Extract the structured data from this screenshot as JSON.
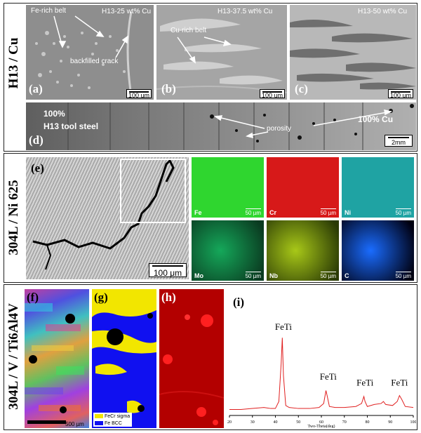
{
  "rows": {
    "r1": {
      "label": "H13 / Cu"
    },
    "r2": {
      "label": "304L / Ni 625"
    },
    "r3": {
      "label": "304L / V / Ti6Al4V"
    }
  },
  "panel_a": {
    "label": "(a)",
    "title": "H13-25 wt% Cu",
    "ann1": "Fe-rich belt",
    "ann2": "backfilled crack",
    "scale": "100 um"
  },
  "panel_b": {
    "label": "(b)",
    "title": "H13-37.5 wt% Cu",
    "ann1": "Cu-rich belt",
    "scale": "100 um"
  },
  "panel_c": {
    "label": "(c)",
    "title": "H13-50 wt% Cu",
    "scale": "100 um"
  },
  "panel_d": {
    "label": "(d)",
    "left_top": "100%",
    "left_bottom": "H13 tool steel",
    "center": "porosity",
    "right": "100% Cu",
    "scale": "2mm"
  },
  "panel_e": {
    "label": "(e)",
    "scale": "100 μm"
  },
  "eds": [
    {
      "el": "Fe",
      "scale": "50 µm",
      "color": "#2fd62f"
    },
    {
      "el": "Cr",
      "scale": "50 µm",
      "color": "#d71919"
    },
    {
      "el": "Ni",
      "scale": "50 µm",
      "color": "#1fa3a3"
    },
    {
      "el": "Mo",
      "scale": "50 µm",
      "color": "#15a85a"
    },
    {
      "el": "Nb",
      "scale": "50 µm",
      "color": "#a8c818"
    },
    {
      "el": "C",
      "scale": "50 µm",
      "color": "#1a6cff"
    }
  ],
  "panel_f": {
    "label": "(f)",
    "scale": "500 µm"
  },
  "panel_g": {
    "label": "(g)",
    "legend1": "FeCr sigma",
    "legend2": "Fe BCC",
    "color1": "#f2e600",
    "color2": "#1010f0"
  },
  "panel_h": {
    "label": "(h)"
  },
  "panel_i": {
    "label": "(i)"
  },
  "chart_data": {
    "type": "line",
    "xlabel": "Two-Theta(deg)",
    "ylabel": "",
    "xlim": [
      20,
      100
    ],
    "xticks": [
      20,
      30,
      40,
      50,
      60,
      70,
      80,
      90,
      100
    ],
    "series": [
      {
        "color": "#e02020",
        "x": [
          20,
          25,
          30,
          35,
          38,
          40,
          41.5,
          42.5,
          43,
          43.5,
          44.5,
          46,
          50,
          55,
          59,
          61,
          62,
          62.5,
          63.5,
          66,
          70,
          75,
          77.5,
          78.5,
          79,
          80,
          83,
          86,
          87,
          88,
          91,
          93,
          94,
          95,
          96.5,
          100
        ],
        "y": [
          6,
          6,
          7,
          8,
          7,
          7,
          14,
          52,
          78,
          40,
          10,
          8,
          7,
          7,
          8,
          12,
          25,
          20,
          9,
          8,
          8,
          9,
          12,
          19,
          14,
          9,
          11,
          12,
          14,
          11,
          10,
          14,
          20,
          16,
          9,
          8
        ]
      }
    ],
    "annotations": [
      {
        "text": "FeTi",
        "x": 43.5,
        "y": 86
      },
      {
        "text": "FeTi",
        "x": 63,
        "y": 36
      },
      {
        "text": "FeTi",
        "x": 79,
        "y": 30
      },
      {
        "text": "FeTi",
        "x": 94,
        "y": 30
      }
    ],
    "ylim": [
      0,
      100
    ]
  }
}
